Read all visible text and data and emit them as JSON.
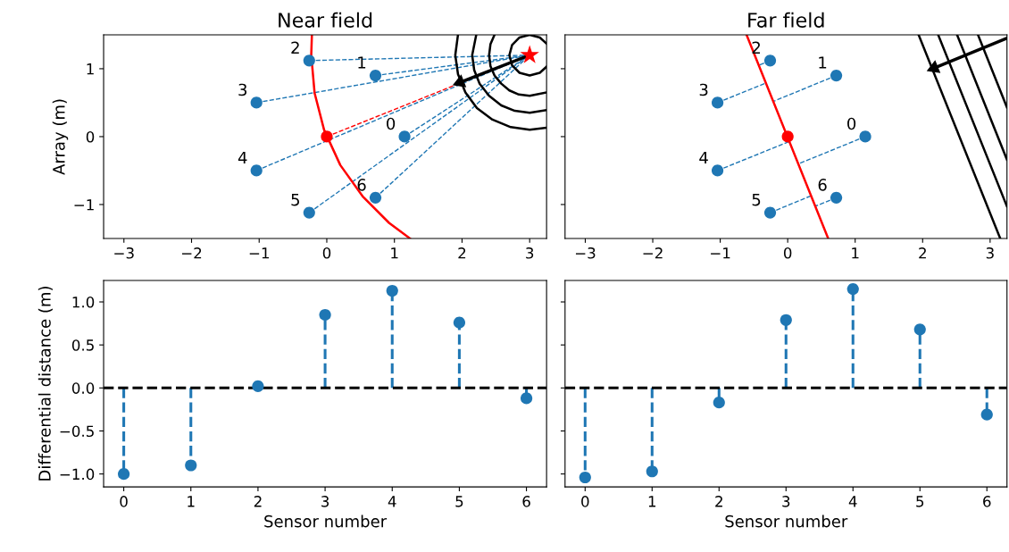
{
  "chart_data": [
    {
      "type": "scatter",
      "title": "Near field",
      "ylabel": "Array (m)",
      "xlim": [
        -3.3,
        3.25
      ],
      "ylim": [
        -1.5,
        1.5
      ],
      "xticks": [
        {
          "value": -3,
          "label": "−3"
        },
        {
          "value": -2,
          "label": "−2"
        },
        {
          "value": -1,
          "label": "−1"
        },
        0,
        1,
        2,
        3
      ],
      "yticks": [
        {
          "value": -1,
          "label": "−1"
        },
        0,
        1
      ],
      "series": [
        {
          "type": "line",
          "color": "#1f77b4",
          "line_style": "dashed",
          "x": [
            1.15,
            3.0
          ],
          "values": [
            0.0,
            1.2
          ]
        },
        {
          "type": "line",
          "color": "#1f77b4",
          "line_style": "dashed",
          "x": [
            0.72,
            3.0
          ],
          "values": [
            0.9,
            1.2
          ]
        },
        {
          "type": "line",
          "color": "#1f77b4",
          "line_style": "dashed",
          "x": [
            -0.26,
            3.0
          ],
          "values": [
            1.12,
            1.2
          ]
        },
        {
          "type": "line",
          "color": "#1f77b4",
          "line_style": "dashed",
          "x": [
            -1.04,
            3.0
          ],
          "values": [
            0.5,
            1.2
          ]
        },
        {
          "type": "line",
          "color": "#1f77b4",
          "line_style": "dashed",
          "x": [
            -1.04,
            3.0
          ],
          "values": [
            -0.5,
            1.2
          ]
        },
        {
          "type": "line",
          "color": "#1f77b4",
          "line_style": "dashed",
          "x": [
            -0.26,
            3.0
          ],
          "values": [
            -1.12,
            1.2
          ]
        },
        {
          "type": "line",
          "color": "#1f77b4",
          "line_style": "dashed",
          "x": [
            0.72,
            3.0
          ],
          "values": [
            -0.9,
            1.2
          ]
        },
        {
          "type": "line",
          "color": "#ff0000",
          "line_style": "dashed",
          "x": [
            0.0,
            3.0
          ],
          "values": [
            0.0,
            1.2
          ]
        },
        {
          "type": "line",
          "color": "#ff0000",
          "x": [
            -0.22,
            -0.23,
            -0.18,
            -0.04,
            0.2,
            0.53,
            0.92,
            1.23
          ],
          "values": [
            1.5,
            1.2,
            0.64,
            0.1,
            -0.42,
            -0.88,
            -1.27,
            -1.5
          ]
        },
        {
          "type": "line",
          "color": "#000000",
          "x": [
            1.94,
            1.9,
            1.94,
            2.05,
            2.22,
            2.45,
            2.72,
            3.0,
            3.25
          ],
          "values": [
            1.5,
            1.2,
            0.92,
            0.65,
            0.42,
            0.25,
            0.14,
            0.1,
            0.13
          ]
        },
        {
          "type": "line",
          "color": "#000000",
          "x": [
            2.21,
            2.15,
            2.18,
            2.26,
            2.4,
            2.58,
            2.78,
            3.0,
            3.25
          ],
          "values": [
            1.5,
            1.2,
            0.98,
            0.78,
            0.6,
            0.46,
            0.38,
            0.35,
            0.39
          ]
        },
        {
          "type": "line",
          "color": "#000000",
          "x": [
            2.48,
            2.42,
            2.4,
            2.42,
            2.48,
            2.58,
            2.7,
            2.84,
            3.0,
            3.25
          ],
          "values": [
            1.5,
            1.36,
            1.2,
            1.04,
            0.9,
            0.78,
            0.68,
            0.62,
            0.6,
            0.65
          ]
        },
        {
          "type": "line",
          "color": "#000000",
          "x": [
            3.25,
            3.15,
            3.0,
            2.85,
            2.74,
            2.7,
            2.74,
            2.85,
            3.0,
            3.15,
            3.25
          ],
          "values": [
            1.37,
            1.46,
            1.5,
            1.46,
            1.35,
            1.2,
            1.05,
            0.94,
            0.9,
            0.94,
            1.03
          ]
        },
        {
          "type": "line",
          "color": "#000000",
          "marker": "triangle",
          "x": [
            3.0,
            1.97
          ],
          "values": [
            1.2,
            0.8
          ]
        },
        {
          "type": "scatter",
          "color": "#1f77b4",
          "marker": "circle",
          "x": [
            1.15,
            0.72,
            -0.26,
            -1.04,
            -1.04,
            -0.26,
            0.72
          ],
          "values": [
            0.0,
            0.9,
            1.12,
            0.5,
            -0.5,
            -1.12,
            -0.9
          ]
        },
        {
          "type": "scatter",
          "color": "#ff0000",
          "marker": "circle",
          "x": [
            0.0
          ],
          "values": [
            0.0
          ]
        },
        {
          "type": "scatter",
          "color": "#ff0000",
          "marker": "star",
          "x": [
            3.0
          ],
          "values": [
            1.2
          ]
        }
      ],
      "annotations": [
        {
          "text": "0",
          "x": 1.15,
          "y": 0.0
        },
        {
          "text": "1",
          "x": 0.72,
          "y": 0.9
        },
        {
          "text": "2",
          "x": -0.26,
          "y": 1.12
        },
        {
          "text": "3",
          "x": -1.04,
          "y": 0.5
        },
        {
          "text": "4",
          "x": -1.04,
          "y": -0.5
        },
        {
          "text": "5",
          "x": -0.26,
          "y": -1.12
        },
        {
          "text": "6",
          "x": 0.72,
          "y": -0.9
        }
      ]
    },
    {
      "type": "scatter",
      "title": "Far field",
      "tick_labels": "x",
      "xlim": [
        -3.3,
        3.25
      ],
      "ylim": [
        -1.5,
        1.5
      ],
      "xticks": [
        {
          "value": -3,
          "label": "−3"
        },
        {
          "value": -2,
          "label": "−2"
        },
        {
          "value": -1,
          "label": "−1"
        },
        0,
        1,
        2,
        3
      ],
      "yticks": [
        -1,
        0,
        1
      ],
      "series": [
        {
          "type": "line",
          "color": "#1f77b4",
          "line_style": "dashed",
          "x": [
            1.15,
            0.16
          ],
          "values": [
            0.0,
            -0.4
          ]
        },
        {
          "type": "line",
          "color": "#1f77b4",
          "line_style": "dashed",
          "x": [
            0.72,
            -0.21
          ],
          "values": [
            0.9,
            0.52
          ]
        },
        {
          "type": "line",
          "color": "#1f77b4",
          "line_style": "dashed",
          "x": [
            -0.26,
            -0.43
          ],
          "values": [
            1.12,
            1.05
          ]
        },
        {
          "type": "line",
          "color": "#1f77b4",
          "line_style": "dashed",
          "x": [
            -1.04,
            -0.32
          ],
          "values": [
            0.5,
            0.79
          ]
        },
        {
          "type": "line",
          "color": "#1f77b4",
          "line_style": "dashed",
          "x": [
            -1.04,
            0.03
          ],
          "values": [
            -0.5,
            -0.07
          ]
        },
        {
          "type": "line",
          "color": "#1f77b4",
          "line_style": "dashed",
          "x": [
            -0.26,
            0.35
          ],
          "values": [
            -1.12,
            -0.87
          ]
        },
        {
          "type": "line",
          "color": "#1f77b4",
          "line_style": "dashed",
          "x": [
            0.72,
            0.42
          ],
          "values": [
            -0.9,
            -1.02
          ]
        },
        {
          "type": "line",
          "color": "#ff0000",
          "x": [
            -0.61,
            0.6
          ],
          "values": [
            1.5,
            -1.5
          ]
        },
        {
          "type": "line",
          "color": "#000000",
          "x": [
            1.94,
            3.15
          ],
          "values": [
            1.5,
            -1.5
          ]
        },
        {
          "type": "line",
          "color": "#000000",
          "x": [
            2.23,
            3.25
          ],
          "values": [
            1.5,
            -1.03
          ]
        },
        {
          "type": "line",
          "color": "#000000",
          "x": [
            2.51,
            3.25
          ],
          "values": [
            1.5,
            -0.34
          ]
        },
        {
          "type": "line",
          "color": "#000000",
          "x": [
            2.82,
            3.25
          ],
          "values": [
            1.5,
            0.43
          ]
        },
        {
          "type": "line",
          "color": "#000000",
          "marker": "triangle",
          "x": [
            3.25,
            2.17
          ],
          "values": [
            1.45,
            1.01
          ]
        },
        {
          "type": "scatter",
          "color": "#1f77b4",
          "marker": "circle",
          "x": [
            1.15,
            0.72,
            -0.26,
            -1.04,
            -1.04,
            -0.26,
            0.72
          ],
          "values": [
            0.0,
            0.9,
            1.12,
            0.5,
            -0.5,
            -1.12,
            -0.9
          ]
        },
        {
          "type": "scatter",
          "color": "#ff0000",
          "marker": "circle",
          "x": [
            0.0
          ],
          "values": [
            0.0
          ]
        }
      ],
      "annotations": [
        {
          "text": "0",
          "x": 1.15,
          "y": 0.0
        },
        {
          "text": "1",
          "x": 0.72,
          "y": 0.9
        },
        {
          "text": "2",
          "x": -0.26,
          "y": 1.12
        },
        {
          "text": "3",
          "x": -1.04,
          "y": 0.5
        },
        {
          "text": "4",
          "x": -1.04,
          "y": -0.5
        },
        {
          "text": "5",
          "x": -0.26,
          "y": -1.12
        },
        {
          "text": "6",
          "x": 0.72,
          "y": -0.9
        }
      ]
    },
    {
      "type": "lollipop",
      "ylabel": "Differential distance (m)",
      "xlabel": "Sensor number",
      "marker": "circle",
      "line_style": "dashed",
      "xlim": [
        -0.3,
        6.3
      ],
      "ylim": [
        -1.15,
        1.25
      ],
      "xticks": [
        0,
        1,
        2,
        3,
        4,
        5,
        6
      ],
      "yticks": [
        {
          "value": -1.0,
          "label": "−1.0"
        },
        {
          "value": -0.5,
          "label": "−0.5"
        },
        {
          "value": 0.0,
          "label": "0.0"
        },
        {
          "value": 0.5,
          "label": "0.5"
        },
        {
          "value": 1.0,
          "label": "1.0"
        }
      ],
      "ref_lines": [
        {
          "axis": "y",
          "value": 0,
          "color": "#000000",
          "line_style": "dashed"
        }
      ],
      "series": [
        {
          "color": "#1f77b4",
          "x": [
            0,
            1,
            2,
            3,
            4,
            5,
            6
          ],
          "values": [
            -1.0,
            -0.9,
            0.02,
            0.85,
            1.13,
            0.76,
            -0.12
          ]
        }
      ]
    },
    {
      "type": "lollipop",
      "xlabel": "Sensor number",
      "tick_labels": "x",
      "marker": "circle",
      "line_style": "dashed",
      "xlim": [
        -0.3,
        6.3
      ],
      "ylim": [
        -1.15,
        1.25
      ],
      "xticks": [
        0,
        1,
        2,
        3,
        4,
        5,
        6
      ],
      "yticks": [
        -1.0,
        -0.5,
        0.0,
        0.5,
        1.0
      ],
      "ref_lines": [
        {
          "axis": "y",
          "value": 0,
          "color": "#000000",
          "line_style": "dashed"
        }
      ],
      "series": [
        {
          "color": "#1f77b4",
          "x": [
            0,
            1,
            2,
            3,
            4,
            5,
            6
          ],
          "values": [
            -1.04,
            -0.97,
            -0.17,
            0.79,
            1.15,
            0.68,
            -0.31
          ]
        }
      ]
    }
  ]
}
